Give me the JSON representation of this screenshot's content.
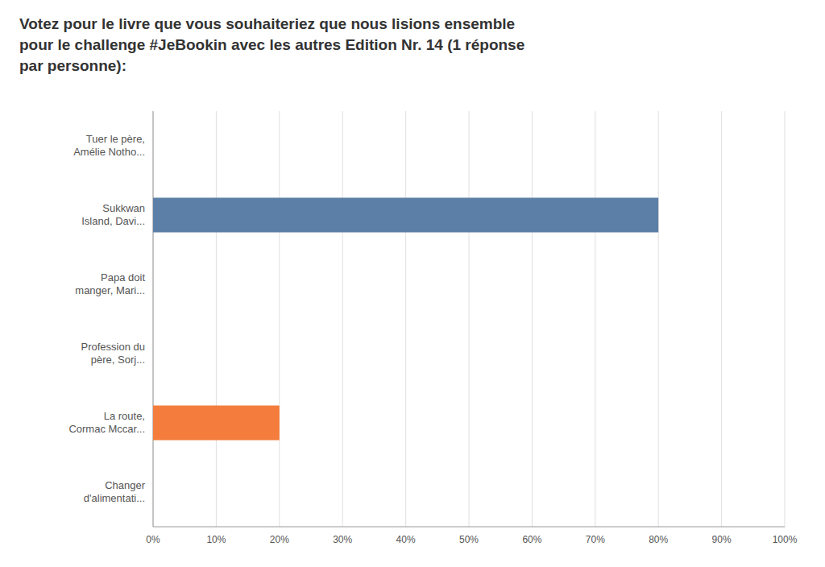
{
  "chart_data": {
    "type": "bar",
    "orientation": "horizontal",
    "title": "Votez pour le livre que vous souhaiteriez que nous lisions ensemble\npour le challenge #JeBookin avec les autres Edition Nr. 14 (1 réponse\npar personne):",
    "categories": [
      "Tuer le père,\nAmélie Notho...",
      "Sukkwan\nIsland, Davi...",
      "Papa doit\nmanger, Mari...",
      "Profession du\npère, Sorj...",
      "La route,\nCormac Mccar...",
      "Changer\nd'alimentati..."
    ],
    "values": [
      0,
      80,
      0,
      0,
      20,
      0
    ],
    "colors": [
      "#5b7fa6",
      "#5b7fa6",
      "#5b7fa6",
      "#5b7fa6",
      "#f47c3c",
      "#5b7fa6"
    ],
    "xlim": [
      0,
      100
    ],
    "xticks": [
      {
        "value": 0,
        "label": "0%"
      },
      {
        "value": 10,
        "label": "10%"
      },
      {
        "value": 20,
        "label": "20%"
      },
      {
        "value": 30,
        "label": "30%"
      },
      {
        "value": 40,
        "label": "40%"
      },
      {
        "value": 50,
        "label": "50%"
      },
      {
        "value": 60,
        "label": "60%"
      },
      {
        "value": 70,
        "label": "70%"
      },
      {
        "value": 80,
        "label": "80%"
      },
      {
        "value": 90,
        "label": "90%"
      },
      {
        "value": 100,
        "label": "100%"
      }
    ],
    "grid": true
  }
}
